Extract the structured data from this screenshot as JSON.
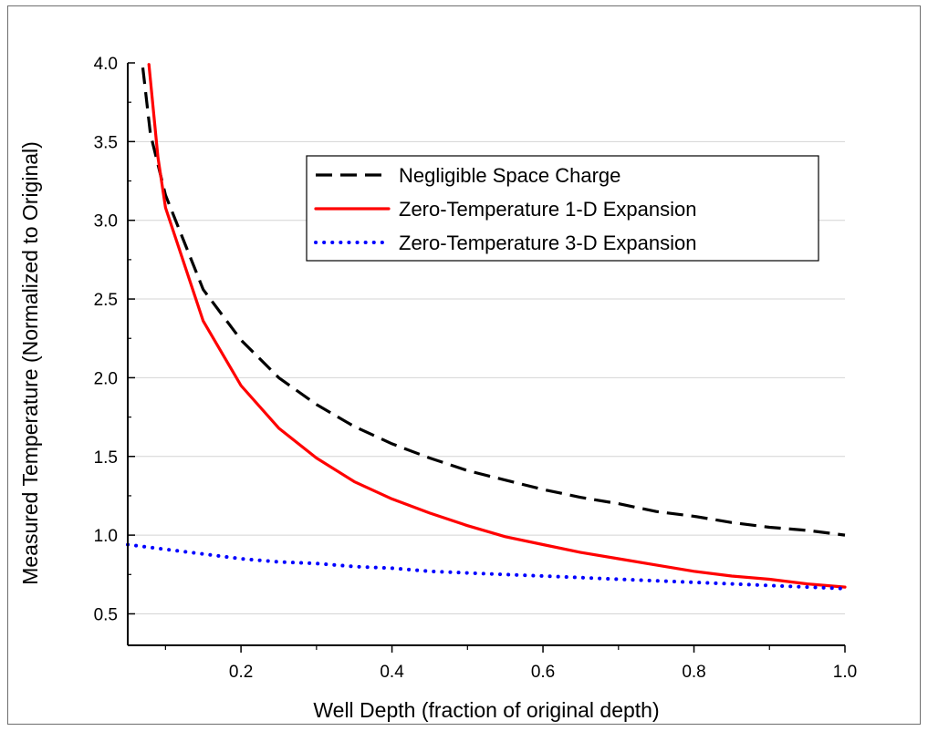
{
  "chart_data": {
    "type": "line",
    "title": "",
    "xlabel": "Well Depth (fraction of original depth)",
    "ylabel": "Measured Temperature (Normalized to Original)",
    "xlim": [
      0.05,
      1.0
    ],
    "ylim": [
      0.3,
      4.0
    ],
    "xticks": [
      0.2,
      0.4,
      0.6,
      0.8,
      1.0
    ],
    "xtick_labels": [
      "0.2",
      "0.4",
      "0.6",
      "0.8",
      "1.0"
    ],
    "yticks": [
      0.5,
      1.0,
      1.5,
      2.0,
      2.5,
      3.0,
      3.5,
      4.0
    ],
    "ytick_labels": [
      "0.5",
      "1.0",
      "1.5",
      "2.0",
      "2.5",
      "3.0",
      "3.5",
      "4.0"
    ],
    "grid": "horizontal",
    "legend_position": "upper-right",
    "series": [
      {
        "name": "Negligible Space Charge",
        "style": "dashed",
        "color": "#000000",
        "x": [
          0.07,
          0.08,
          0.1,
          0.15,
          0.2,
          0.25,
          0.3,
          0.35,
          0.4,
          0.45,
          0.5,
          0.55,
          0.6,
          0.65,
          0.7,
          0.75,
          0.8,
          0.85,
          0.9,
          0.95,
          1.0
        ],
        "y": [
          3.97,
          3.55,
          3.16,
          2.56,
          2.24,
          2.0,
          1.83,
          1.69,
          1.58,
          1.49,
          1.41,
          1.35,
          1.29,
          1.24,
          1.2,
          1.15,
          1.12,
          1.08,
          1.05,
          1.03,
          1.0
        ]
      },
      {
        "name": "Zero-Temperature 1-D Expansion",
        "style": "solid",
        "color": "#ff0000",
        "x": [
          0.078,
          0.09,
          0.1,
          0.15,
          0.2,
          0.25,
          0.3,
          0.35,
          0.4,
          0.45,
          0.5,
          0.55,
          0.6,
          0.65,
          0.7,
          0.75,
          0.8,
          0.85,
          0.9,
          0.95,
          1.0
        ],
        "y": [
          3.99,
          3.4,
          3.08,
          2.36,
          1.95,
          1.68,
          1.49,
          1.34,
          1.23,
          1.14,
          1.06,
          0.99,
          0.94,
          0.89,
          0.85,
          0.81,
          0.77,
          0.74,
          0.72,
          0.69,
          0.67
        ]
      },
      {
        "name": "Zero-Temperature 3-D Expansion",
        "style": "dotted",
        "color": "#0000ff",
        "x": [
          0.05,
          0.1,
          0.15,
          0.2,
          0.25,
          0.3,
          0.35,
          0.4,
          0.45,
          0.5,
          0.55,
          0.6,
          0.65,
          0.7,
          0.75,
          0.8,
          0.85,
          0.9,
          0.95,
          1.0
        ],
        "y": [
          0.94,
          0.91,
          0.88,
          0.85,
          0.83,
          0.82,
          0.8,
          0.79,
          0.77,
          0.76,
          0.75,
          0.74,
          0.73,
          0.72,
          0.71,
          0.7,
          0.69,
          0.68,
          0.67,
          0.66
        ]
      }
    ]
  }
}
